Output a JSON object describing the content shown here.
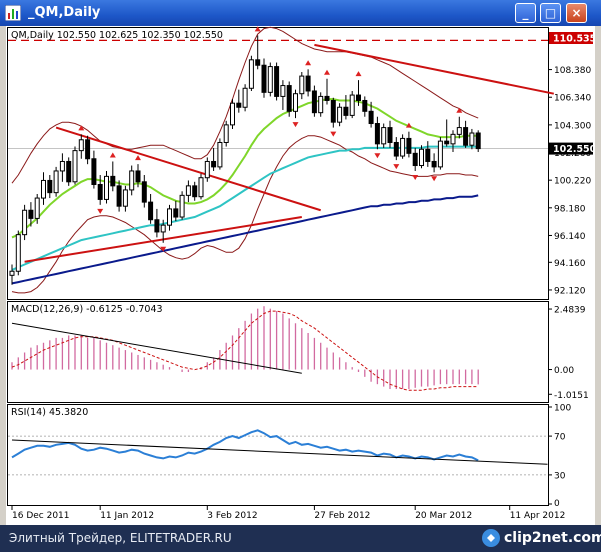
{
  "window": {
    "title": "_QM,Daily",
    "buttons": {
      "minimize": "_",
      "maximize": "□",
      "close": "×"
    }
  },
  "footer": {
    "text": "Элитный Трейдер, ELITETRADER.RU",
    "brand": "clip2net.com"
  },
  "colors": {
    "candle": "#000000",
    "bollinger": "#8b1a1a",
    "ma_fast": "#7fd62a",
    "ma_mid": "#2ec4c4",
    "ma_slow": "#0a1a8c",
    "trendline_red": "#cc1111",
    "fractal_marker": "#dd2222",
    "macd_hist": "#d26aa0",
    "macd_signal": "#cc1111",
    "rsi": "#2b7fd6",
    "price_label": "#cc0000"
  },
  "chart_data": [
    {
      "type": "candlestick",
      "name": "price",
      "title": "QM,Daily  102.550 102.625 102.350 102.550",
      "price_labels": {
        "resistance": "110.535",
        "current": "102.550"
      },
      "y_ticks": [
        "108.380",
        "106.340",
        "104.300",
        "102.260",
        "100.220",
        "98.180",
        "96.140",
        "94.160",
        "92.120"
      ],
      "y_tick_values": [
        108.38,
        106.34,
        104.3,
        102.26,
        100.22,
        98.18,
        96.14,
        94.16,
        92.12
      ],
      "ylim": [
        91.6,
        111.3
      ],
      "resistance": 110.535,
      "current": 102.55,
      "x_labels": [
        "16 Dec 2011",
        "11 Jan 2012",
        "3 Feb 2012",
        "27 Feb 2012",
        "20 Mar 2012",
        "11 Apr 2012"
      ],
      "x_label_index": [
        0,
        14,
        31,
        48,
        64,
        79
      ],
      "ohlc": [
        [
          93.2,
          94.0,
          92.5,
          93.5
        ],
        [
          93.5,
          96.5,
          93.2,
          96.2
        ],
        [
          96.2,
          98.4,
          95.8,
          98.0
        ],
        [
          98.0,
          98.6,
          96.8,
          97.4
        ],
        [
          97.4,
          99.2,
          97.0,
          98.9
        ],
        [
          98.9,
          100.8,
          98.4,
          100.2
        ],
        [
          100.2,
          100.6,
          98.9,
          99.3
        ],
        [
          99.3,
          101.2,
          99.0,
          100.9
        ],
        [
          100.9,
          102.2,
          100.1,
          101.6
        ],
        [
          101.6,
          101.9,
          99.8,
          100.1
        ],
        [
          100.1,
          102.7,
          99.9,
          102.4
        ],
        [
          102.4,
          103.6,
          101.8,
          103.2
        ],
        [
          103.2,
          103.5,
          101.4,
          101.8
        ],
        [
          101.8,
          102.4,
          99.6,
          99.9
        ],
        [
          99.9,
          100.6,
          98.4,
          98.8
        ],
        [
          98.8,
          100.9,
          98.5,
          100.5
        ],
        [
          100.5,
          101.6,
          99.4,
          99.8
        ],
        [
          99.8,
          100.2,
          97.9,
          98.3
        ],
        [
          98.3,
          99.8,
          97.9,
          99.5
        ],
        [
          99.5,
          101.3,
          99.1,
          100.9
        ],
        [
          100.9,
          101.4,
          99.7,
          100.1
        ],
        [
          100.1,
          100.6,
          98.2,
          98.6
        ],
        [
          98.6,
          99.2,
          97.0,
          97.3
        ],
        [
          97.3,
          98.1,
          96.0,
          96.4
        ],
        [
          96.4,
          97.3,
          95.6,
          96.9
        ],
        [
          96.9,
          98.4,
          96.5,
          98.1
        ],
        [
          98.1,
          98.7,
          97.2,
          97.5
        ],
        [
          97.5,
          99.4,
          97.3,
          99.1
        ],
        [
          99.1,
          100.2,
          98.6,
          99.8
        ],
        [
          99.8,
          100.1,
          98.7,
          99.0
        ],
        [
          99.0,
          100.7,
          98.8,
          100.4
        ],
        [
          100.4,
          101.9,
          100.1,
          101.6
        ],
        [
          101.6,
          102.6,
          100.9,
          101.2
        ],
        [
          101.2,
          103.3,
          101.0,
          103.0
        ],
        [
          103.0,
          104.6,
          102.7,
          104.3
        ],
        [
          104.3,
          106.2,
          104.0,
          105.9
        ],
        [
          105.9,
          106.9,
          105.2,
          105.6
        ],
        [
          105.6,
          107.3,
          105.3,
          107.0
        ],
        [
          107.0,
          109.4,
          106.8,
          109.1
        ],
        [
          109.1,
          110.9,
          108.4,
          108.7
        ],
        [
          108.7,
          109.2,
          106.3,
          106.7
        ],
        [
          106.7,
          108.9,
          106.4,
          108.6
        ],
        [
          108.6,
          108.9,
          106.1,
          106.4
        ],
        [
          106.4,
          107.6,
          105.4,
          107.2
        ],
        [
          107.2,
          107.5,
          104.9,
          105.3
        ],
        [
          105.3,
          106.9,
          104.8,
          106.6
        ],
        [
          106.6,
          108.2,
          106.2,
          107.9
        ],
        [
          107.9,
          108.4,
          106.4,
          106.8
        ],
        [
          106.8,
          107.2,
          104.9,
          105.2
        ],
        [
          105.2,
          106.7,
          104.9,
          106.4
        ],
        [
          106.4,
          107.7,
          105.8,
          106.1
        ],
        [
          106.1,
          106.3,
          104.1,
          104.5
        ],
        [
          104.5,
          105.9,
          104.2,
          105.6
        ],
        [
          105.6,
          106.5,
          104.7,
          105.0
        ],
        [
          105.0,
          106.8,
          104.8,
          106.5
        ],
        [
          106.5,
          107.6,
          105.7,
          106.1
        ],
        [
          106.1,
          106.4,
          104.9,
          105.3
        ],
        [
          105.3,
          106.0,
          104.1,
          104.4
        ],
        [
          104.4,
          104.9,
          102.5,
          102.9
        ],
        [
          102.9,
          104.4,
          102.6,
          104.1
        ],
        [
          104.1,
          104.6,
          102.6,
          103.0
        ],
        [
          103.0,
          103.4,
          101.7,
          102.0
        ],
        [
          102.0,
          103.6,
          101.8,
          103.3
        ],
        [
          103.3,
          103.8,
          101.9,
          102.2
        ],
        [
          102.2,
          102.6,
          100.9,
          101.3
        ],
        [
          101.3,
          102.8,
          101.1,
          102.5
        ],
        [
          102.5,
          103.1,
          101.2,
          101.6
        ],
        [
          101.6,
          102.2,
          100.8,
          101.2
        ],
        [
          101.2,
          103.4,
          101.0,
          103.1
        ],
        [
          103.1,
          104.7,
          102.7,
          102.9
        ],
        [
          102.9,
          103.9,
          102.3,
          103.6
        ],
        [
          103.6,
          104.9,
          103.3,
          104.1
        ],
        [
          104.1,
          104.6,
          102.6,
          102.8
        ],
        [
          102.8,
          104.0,
          102.5,
          103.7
        ],
        [
          103.7,
          103.9,
          102.3,
          102.55
        ]
      ],
      "ma_fast": [
        96.0,
        96.2,
        96.6,
        97.0,
        97.4,
        97.9,
        98.4,
        98.8,
        99.2,
        99.5,
        99.8,
        100.1,
        100.3,
        100.3,
        100.2,
        100.1,
        100.1,
        100.0,
        99.9,
        99.9,
        100.0,
        99.9,
        99.7,
        99.4,
        99.1,
        98.9,
        98.7,
        98.6,
        98.5,
        98.5,
        98.6,
        98.8,
        99.1,
        99.5,
        100.0,
        100.6,
        101.3,
        102.0,
        102.8,
        103.5,
        104.0,
        104.4,
        104.8,
        105.1,
        105.3,
        105.5,
        105.7,
        105.9,
        106.0,
        106.1,
        106.2,
        106.2,
        106.1,
        106.1,
        106.1,
        106.0,
        105.9,
        105.7,
        105.5,
        105.2,
        104.9,
        104.6,
        104.4,
        104.2,
        104.0,
        103.8,
        103.6,
        103.5,
        103.4,
        103.4,
        103.4,
        103.4,
        103.5,
        103.5,
        103.5
      ],
      "ma_mid": [
        93.6,
        93.8,
        94.0,
        94.2,
        94.4,
        94.6,
        94.8,
        95.0,
        95.2,
        95.4,
        95.6,
        95.8,
        95.9,
        96.0,
        96.1,
        96.2,
        96.3,
        96.4,
        96.5,
        96.6,
        96.7,
        96.8,
        96.9,
        96.9,
        97.0,
        97.1,
        97.2,
        97.3,
        97.4,
        97.5,
        97.7,
        97.9,
        98.1,
        98.3,
        98.6,
        98.9,
        99.2,
        99.5,
        99.8,
        100.1,
        100.4,
        100.7,
        100.9,
        101.1,
        101.3,
        101.5,
        101.7,
        101.9,
        102.0,
        102.1,
        102.2,
        102.3,
        102.4,
        102.4,
        102.5,
        102.5,
        102.6,
        102.6,
        102.6,
        102.6,
        102.6,
        102.6,
        102.6,
        102.6,
        102.6,
        102.6,
        102.7,
        102.7,
        102.7,
        102.7,
        102.7,
        102.7,
        102.7,
        102.7,
        102.7
      ],
      "ma_slow": [
        92.6,
        92.7,
        92.8,
        92.9,
        93.0,
        93.1,
        93.2,
        93.3,
        93.4,
        93.5,
        93.6,
        93.7,
        93.8,
        93.9,
        94.0,
        94.1,
        94.2,
        94.3,
        94.4,
        94.5,
        94.6,
        94.7,
        94.8,
        94.9,
        95.0,
        95.1,
        95.2,
        95.3,
        95.4,
        95.5,
        95.6,
        95.7,
        95.8,
        95.9,
        96.0,
        96.1,
        96.2,
        96.3,
        96.4,
        96.5,
        96.6,
        96.7,
        96.8,
        96.9,
        97.0,
        97.1,
        97.2,
        97.3,
        97.4,
        97.5,
        97.6,
        97.7,
        97.8,
        97.9,
        98.0,
        98.1,
        98.2,
        98.3,
        98.3,
        98.4,
        98.4,
        98.5,
        98.5,
        98.6,
        98.6,
        98.7,
        98.7,
        98.8,
        98.8,
        98.9,
        98.9,
        99.0,
        99.0,
        99.0,
        99.1
      ],
      "bb_upper": [
        100.0,
        100.6,
        101.4,
        102.2,
        102.9,
        103.5,
        104.0,
        104.3,
        104.5,
        104.5,
        104.4,
        104.2,
        103.9,
        103.5,
        103.1,
        102.9,
        102.7,
        102.6,
        102.5,
        102.5,
        102.6,
        102.7,
        102.8,
        102.8,
        102.8,
        102.6,
        102.4,
        102.2,
        102.0,
        101.8,
        101.8,
        102.1,
        102.8,
        103.8,
        104.9,
        106.2,
        107.6,
        108.9,
        110.1,
        111.0,
        111.4,
        111.5,
        111.4,
        111.2,
        110.9,
        110.6,
        110.3,
        110.1,
        109.9,
        109.8,
        109.7,
        109.7,
        109.7,
        109.7,
        109.6,
        109.5,
        109.4,
        109.3,
        109.1,
        108.9,
        108.7,
        108.4,
        108.1,
        107.8,
        107.5,
        107.2,
        106.9,
        106.6,
        106.3,
        106.0,
        105.7,
        105.5,
        105.2,
        105.0,
        104.8
      ],
      "bb_lower": [
        92.0,
        91.9,
        91.9,
        92.0,
        92.3,
        92.8,
        93.5,
        94.2,
        95.0,
        95.7,
        96.3,
        96.8,
        97.3,
        97.5,
        97.6,
        97.6,
        97.5,
        97.3,
        97.1,
        96.8,
        96.5,
        96.2,
        95.8,
        95.4,
        95.0,
        94.7,
        94.5,
        94.4,
        94.5,
        94.8,
        95.2,
        95.4,
        95.3,
        95.1,
        94.9,
        94.9,
        95.2,
        95.9,
        96.9,
        98.1,
        99.2,
        100.3,
        101.2,
        102.0,
        102.6,
        103.0,
        103.3,
        103.5,
        103.5,
        103.4,
        103.2,
        103.0,
        102.8,
        102.5,
        102.3,
        102.0,
        101.8,
        101.5,
        101.3,
        101.1,
        100.9,
        100.8,
        100.7,
        100.6,
        100.5,
        100.5,
        100.5,
        100.6,
        100.6,
        100.7,
        100.7,
        100.7,
        100.6,
        100.6,
        100.5
      ],
      "trendlines": [
        {
          "from": [
            7,
            104.1
          ],
          "to": [
            49,
            98.0
          ],
          "color": "red"
        },
        {
          "from": [
            2,
            94.2
          ],
          "to": [
            46,
            97.5
          ],
          "color": "red"
        },
        {
          "from": [
            48,
            110.2
          ],
          "to": [
            86,
            106.6
          ],
          "color": "red"
        }
      ]
    },
    {
      "type": "bar",
      "name": "macd",
      "title": "MACD(12,26,9) -0.6125 -0.7043",
      "y_ticks": [
        "2.4839",
        "0.00",
        "-1.0151"
      ],
      "y_tick_values": [
        2.4839,
        0,
        -1.0151
      ],
      "ylim": [
        -1.25,
        2.65
      ],
      "histogram": [
        0.3,
        0.5,
        0.7,
        0.9,
        1.0,
        1.1,
        1.2,
        1.3,
        1.3,
        1.4,
        1.4,
        1.4,
        1.3,
        1.3,
        1.2,
        1.1,
        1.0,
        0.9,
        0.8,
        0.7,
        0.6,
        0.5,
        0.4,
        0.3,
        0.2,
        0.1,
        0.0,
        -0.1,
        -0.1,
        0.0,
        0.1,
        0.3,
        0.5,
        0.8,
        1.1,
        1.4,
        1.7,
        2.0,
        2.3,
        2.5,
        2.6,
        2.5,
        2.4,
        2.3,
        2.1,
        1.9,
        1.7,
        1.5,
        1.3,
        1.1,
        0.9,
        0.7,
        0.5,
        0.3,
        0.1,
        -0.1,
        -0.3,
        -0.5,
        -0.6,
        -0.7,
        -0.8,
        -0.8,
        -0.8,
        -0.8,
        -0.75,
        -0.7,
        -0.7,
        -0.65,
        -0.6,
        -0.6,
        -0.6,
        -0.6,
        -0.6,
        -0.6,
        -0.61
      ],
      "signal": [
        0.1,
        0.2,
        0.35,
        0.5,
        0.65,
        0.8,
        0.9,
        1.0,
        1.1,
        1.2,
        1.3,
        1.35,
        1.35,
        1.35,
        1.3,
        1.25,
        1.2,
        1.1,
        1.0,
        0.9,
        0.8,
        0.7,
        0.6,
        0.5,
        0.4,
        0.3,
        0.2,
        0.1,
        0.05,
        0.0,
        0.05,
        0.15,
        0.3,
        0.5,
        0.75,
        1.0,
        1.3,
        1.6,
        1.9,
        2.1,
        2.3,
        2.4,
        2.4,
        2.35,
        2.3,
        2.2,
        2.0,
        1.85,
        1.7,
        1.5,
        1.3,
        1.1,
        0.9,
        0.7,
        0.5,
        0.3,
        0.1,
        -0.1,
        -0.3,
        -0.45,
        -0.6,
        -0.7,
        -0.8,
        -0.85,
        -0.85,
        -0.85,
        -0.8,
        -0.8,
        -0.75,
        -0.75,
        -0.7,
        -0.7,
        -0.7,
        -0.7,
        -0.7
      ],
      "trendlines": [
        {
          "from": [
            0,
            1.9
          ],
          "to": [
            46,
            -0.15
          ],
          "color": "black"
        }
      ]
    },
    {
      "type": "line",
      "name": "rsi",
      "title": "RSI(14) 45.3820",
      "y_ticks": [
        "100",
        "70",
        "30",
        "0"
      ],
      "y_tick_values": [
        100,
        70,
        30,
        0
      ],
      "ylim": [
        0,
        100
      ],
      "values": [
        48,
        52,
        56,
        58,
        60,
        60,
        59,
        61,
        62,
        63,
        61,
        57,
        55,
        56,
        58,
        57,
        55,
        53,
        54,
        56,
        55,
        52,
        50,
        48,
        47,
        49,
        48,
        50,
        53,
        52,
        54,
        57,
        61,
        64,
        68,
        70,
        68,
        71,
        74,
        76,
        73,
        69,
        70,
        66,
        62,
        64,
        61,
        62,
        60,
        58,
        59,
        57,
        55,
        56,
        54,
        55,
        54,
        53,
        50,
        52,
        51,
        48,
        50,
        49,
        47,
        49,
        48,
        46,
        48,
        50,
        49,
        51,
        49,
        48,
        45
      ],
      "trendlines": [
        {
          "from": [
            0,
            66
          ],
          "to": [
            85,
            41
          ],
          "color": "black"
        }
      ]
    }
  ]
}
